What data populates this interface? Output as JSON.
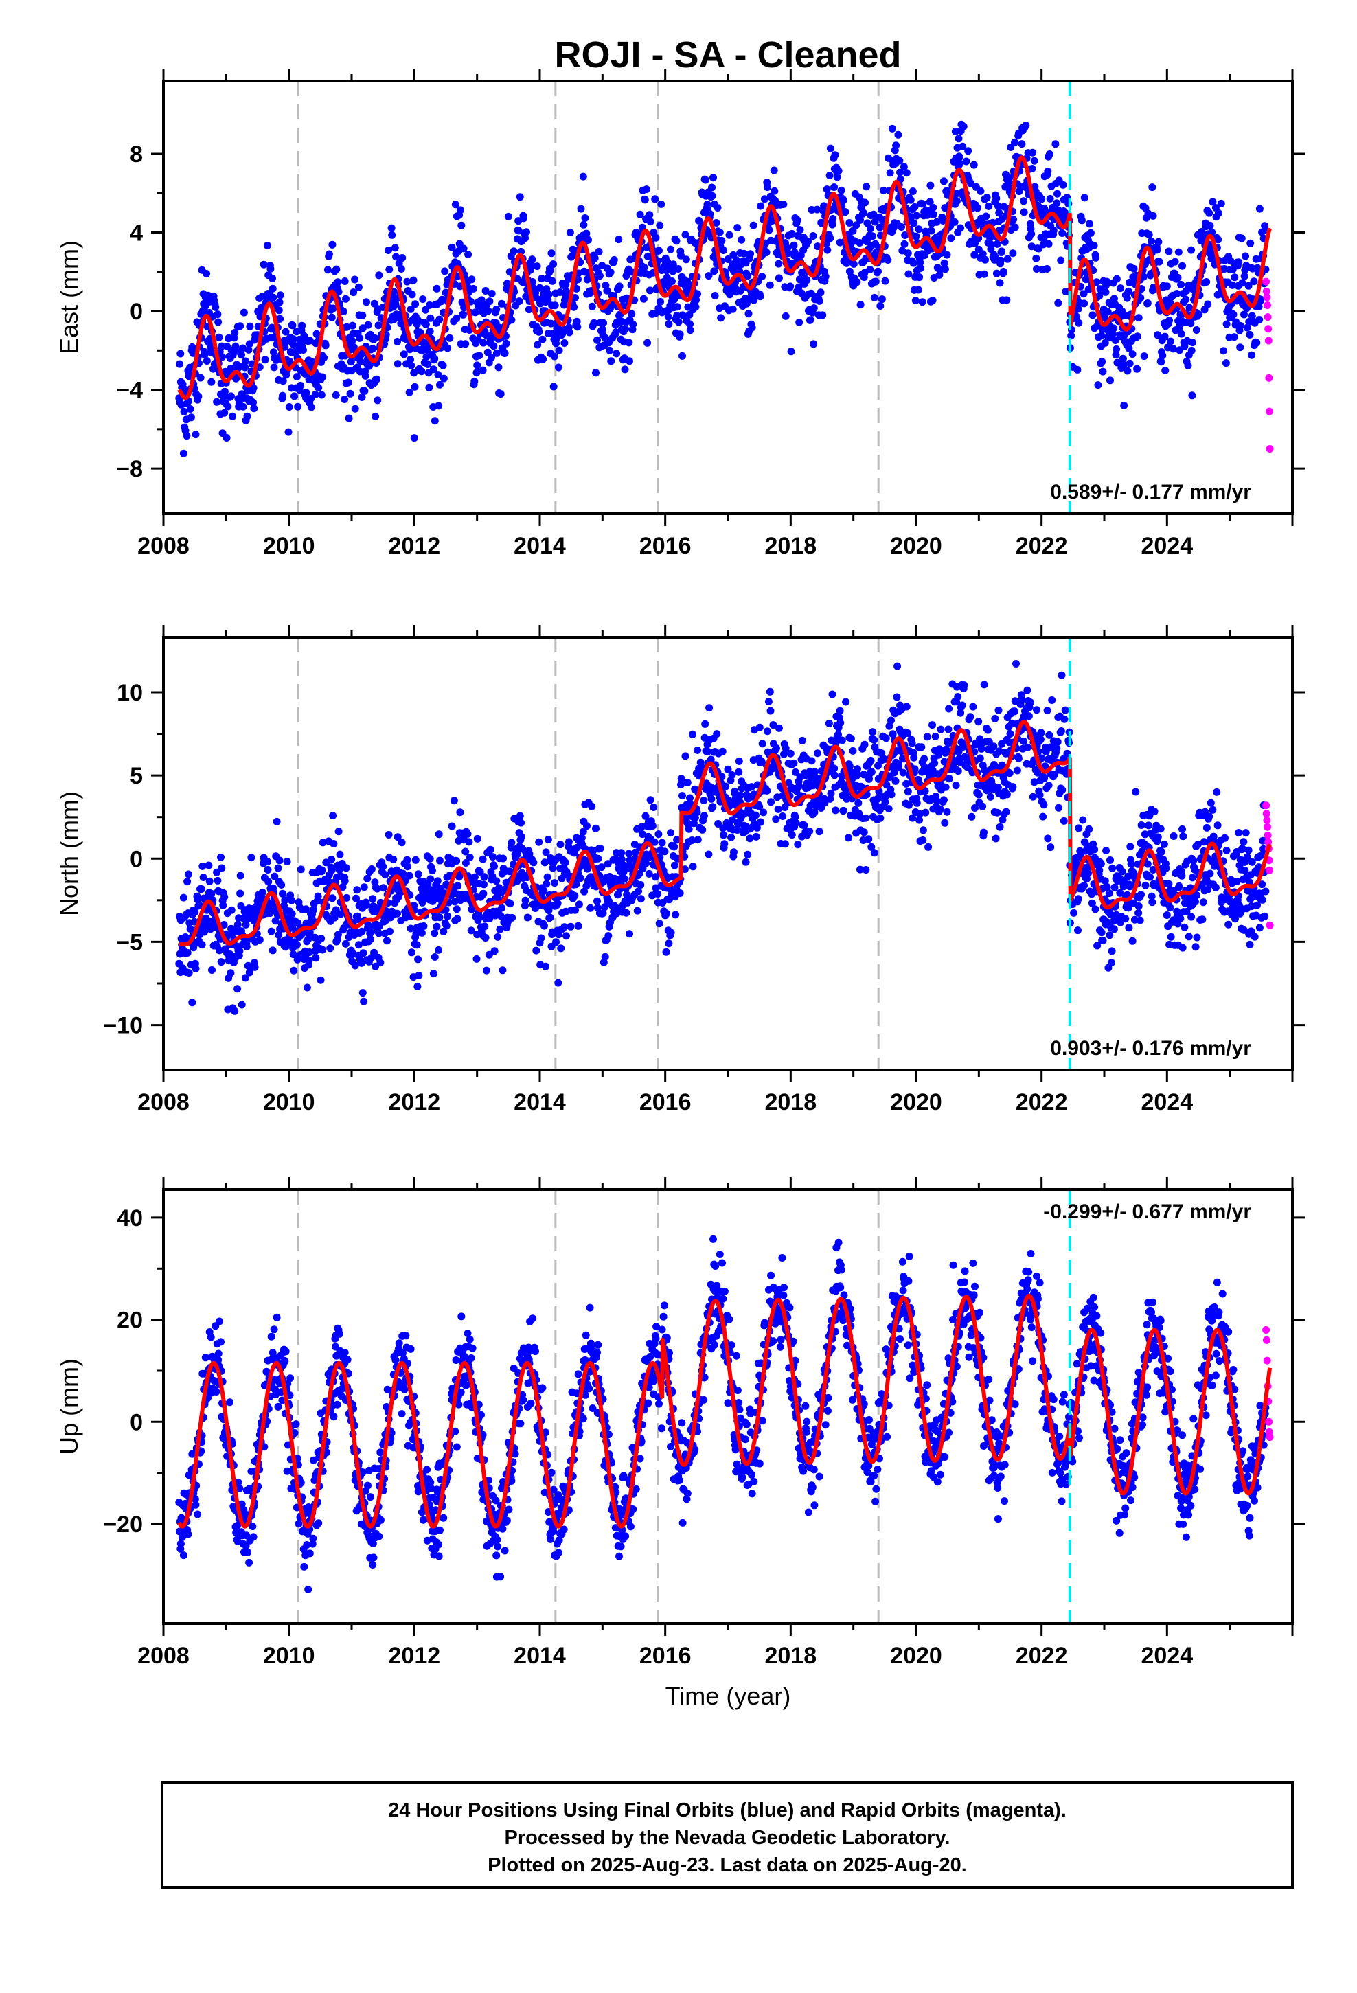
{
  "title": "ROJI  - SA - Cleaned",
  "footer": {
    "line1": "24 Hour Positions Using Final Orbits (blue) and Rapid Orbits (magenta).",
    "line2": "Processed by the Nevada Geodetic Laboratory.",
    "line3": "Plotted on 2025-Aug-23. Last data on 2025-Aug-20."
  },
  "colors": {
    "final_orbits": "#0000ff",
    "rapid_orbits": "#ff00ff",
    "model": "#ff0000",
    "equipment_change": "#bbbbbb",
    "earthquake": "#00e5ee"
  },
  "chart_data": [
    {
      "type": "scatter",
      "component": "east",
      "ylabel": "East (mm)",
      "xlim": [
        2008,
        2026
      ],
      "ylim": [
        -10.3,
        11.7
      ],
      "xticks": [
        "2008",
        "2010",
        "2012",
        "2014",
        "2016",
        "2018",
        "2020",
        "2022",
        "2024"
      ],
      "yticks": [
        -8,
        -4,
        0,
        4,
        8
      ],
      "ytick_labels": [
        "−8",
        "−4",
        "0",
        "4",
        "8"
      ],
      "rate_label": "0.589+/- 0.177 mm/yr",
      "rate_position": "bottom-right",
      "equipment_change_epochs": [
        2010.15,
        2014.25,
        2015.88,
        2019.4
      ],
      "offset_epoch": 2022.45,
      "model": {
        "segments": [
          {
            "start": 2008.25,
            "end": 2022.45,
            "baseline_at_start": -3.0,
            "trend_mm_per_yr": 0.62,
            "annual_amp": 1.6,
            "annual_phase_yr": 0.45,
            "semiannual_amp": 0.9,
            "semiannual_phase_yr": 0.05
          },
          {
            "start": 2022.45,
            "end": 2025.64,
            "baseline_at_start": 0.0,
            "trend_mm_per_yr": 0.6,
            "annual_amp": 1.6,
            "annual_phase_yr": 0.45,
            "semiannual_amp": 0.9,
            "semiannual_phase_yr": 0.05
          }
        ],
        "noise_sd": 1.4
      },
      "series": [
        {
          "name": "Final Orbits (blue)",
          "x_range": [
            2008.25,
            2025.57
          ],
          "points_per_year": 140
        },
        {
          "name": "Rapid Orbits (magenta)",
          "x_range": [
            2025.58,
            2025.64
          ],
          "y": [
            1.5,
            1.0,
            0.7,
            0.3,
            -0.3,
            -0.9,
            -1.5,
            -3.4,
            -5.1,
            -7.0
          ]
        }
      ]
    },
    {
      "type": "scatter",
      "component": "north",
      "ylabel": "North (mm)",
      "xlim": [
        2008,
        2026
      ],
      "ylim": [
        -12.7,
        13.3
      ],
      "xticks": [
        "2008",
        "2010",
        "2012",
        "2014",
        "2016",
        "2018",
        "2020",
        "2022",
        "2024"
      ],
      "yticks": [
        -10,
        -5,
        0,
        5,
        10
      ],
      "ytick_labels": [
        "−10",
        "−5",
        "0",
        "5",
        "10"
      ],
      "rate_label": "0.903+/- 0.176 mm/yr",
      "rate_position": "bottom-right",
      "equipment_change_epochs": [
        2010.15,
        2014.25,
        2015.88,
        2019.4
      ],
      "offset_epoch": 2022.45,
      "model": {
        "segments": [
          {
            "start": 2008.25,
            "end": 2016.25,
            "baseline_at_start": -4.5,
            "trend_mm_per_yr": 0.5,
            "annual_amp": 1.2,
            "annual_phase_yr": 0.45,
            "semiannual_amp": 0.5,
            "semiannual_phase_yr": 0.1
          },
          {
            "start": 2016.25,
            "end": 2022.45,
            "baseline_at_start": 3.5,
            "trend_mm_per_yr": 0.5,
            "annual_amp": 1.4,
            "annual_phase_yr": 0.45,
            "semiannual_amp": 0.6,
            "semiannual_phase_yr": 0.1
          },
          {
            "start": 2022.45,
            "end": 2025.64,
            "baseline_at_start": -2.0,
            "trend_mm_per_yr": 0.4,
            "annual_amp": 1.4,
            "annual_phase_yr": 0.45,
            "semiannual_amp": 0.6,
            "semiannual_phase_yr": 0.1
          }
        ],
        "noise_sd": 1.6
      },
      "series": [
        {
          "name": "Final Orbits (blue)",
          "x_range": [
            2008.25,
            2025.57
          ],
          "points_per_year": 140
        },
        {
          "name": "Rapid Orbits (magenta)",
          "x_range": [
            2025.58,
            2025.64
          ],
          "y": [
            3.2,
            2.7,
            2.3,
            1.9,
            1.4,
            1.0,
            0.6,
            -0.1,
            -0.7,
            -4.0
          ]
        }
      ]
    },
    {
      "type": "scatter",
      "component": "up",
      "ylabel": "Up (mm)",
      "xlim": [
        2008,
        2026
      ],
      "ylim": [
        -39.5,
        45.5
      ],
      "xticks": [
        "2008",
        "2010",
        "2012",
        "2014",
        "2016",
        "2018",
        "2020",
        "2022",
        "2024"
      ],
      "yticks": [
        -20,
        0,
        20,
        40
      ],
      "ytick_labels": [
        "−20",
        "0",
        "20",
        "40"
      ],
      "xlabel": "Time (year)",
      "rate_label": "-0.299+/- 0.677 mm/yr",
      "rate_position": "top-right",
      "equipment_change_epochs": [
        2010.15,
        2014.25,
        2015.88,
        2019.4
      ],
      "offset_epoch": 2022.45,
      "model": {
        "segments": [
          {
            "start": 2008.25,
            "end": 2015.95,
            "baseline_at_start": -4.5,
            "trend_mm_per_yr": 0.0,
            "annual_amp": 16.0,
            "annual_phase_yr": 0.55,
            "semiannual_amp": 0.0,
            "semiannual_phase_yr": 0.0
          },
          {
            "start": 2015.95,
            "end": 2022.45,
            "baseline_at_start": 7.5,
            "trend_mm_per_yr": 0.2,
            "annual_amp": 16.0,
            "annual_phase_yr": 0.55,
            "semiannual_amp": 0.0,
            "semiannual_phase_yr": 0.0
          },
          {
            "start": 2022.45,
            "end": 2025.64,
            "baseline_at_start": 2.0,
            "trend_mm_per_yr": 0.0,
            "annual_amp": 16.0,
            "annual_phase_yr": 0.55,
            "semiannual_amp": 0.0,
            "semiannual_phase_yr": 0.0
          }
        ],
        "noise_sd": 4.2
      },
      "series": [
        {
          "name": "Final Orbits (blue)",
          "x_range": [
            2008.25,
            2025.57
          ],
          "points_per_year": 140
        },
        {
          "name": "Rapid Orbits (magenta)",
          "x_range": [
            2025.58,
            2025.64
          ],
          "y": [
            18.0,
            16.0,
            12.0,
            7.0,
            4.0,
            0.0,
            -2.0,
            -3.0
          ]
        }
      ]
    }
  ]
}
